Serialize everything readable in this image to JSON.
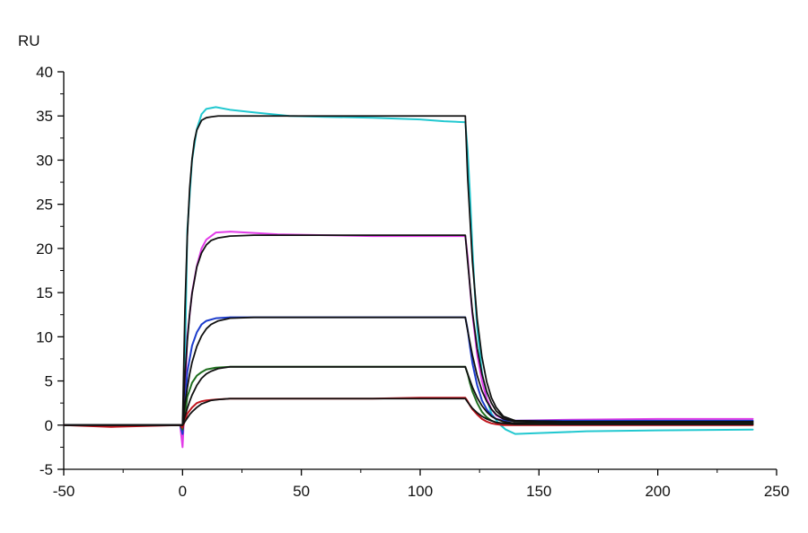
{
  "chart_data": {
    "type": "line",
    "title": "",
    "xlabel": "",
    "ylabel": "RU",
    "xlim": [
      -50,
      250
    ],
    "ylim": [
      -5,
      40
    ],
    "x_ticks": [
      -50,
      0,
      50,
      100,
      150,
      200,
      250
    ],
    "x_tick_labels": [
      "-50",
      "0",
      "50",
      "100",
      "150",
      "200",
      "250"
    ],
    "y_ticks": [
      -5,
      0,
      5,
      10,
      15,
      20,
      25,
      30,
      35,
      40
    ],
    "y_tick_labels": [
      "-5",
      "0",
      "5",
      "10",
      "15",
      "20",
      "25",
      "30",
      "35",
      "40"
    ],
    "grid": false,
    "legend": false,
    "series": [
      {
        "color": "#22c8d0",
        "x": [
          -50,
          -1,
          0,
          1,
          2,
          4,
          6,
          8,
          10,
          14,
          20,
          30,
          45,
          60,
          80,
          100,
          110,
          118,
          119,
          120,
          121,
          122,
          123,
          124,
          126,
          128,
          130,
          133,
          136,
          140,
          150,
          170,
          200,
          240
        ],
        "y": [
          0,
          0,
          -1.5,
          7,
          22,
          30,
          33.5,
          35.2,
          35.8,
          36,
          35.7,
          35.4,
          35,
          34.9,
          34.8,
          34.6,
          34.4,
          34.3,
          34.3,
          31,
          26,
          20,
          15,
          11,
          6,
          3,
          1.3,
          0.2,
          -0.5,
          -1,
          -0.9,
          -0.7,
          -0.6,
          -0.5
        ]
      },
      {
        "color": "#e23be8",
        "x": [
          -50,
          -1,
          0,
          1,
          2,
          4,
          6,
          8,
          10,
          14,
          20,
          40,
          60,
          80,
          100,
          119,
          120,
          121,
          122,
          124,
          126,
          128,
          130,
          132,
          135,
          140,
          160,
          200,
          240
        ],
        "y": [
          0,
          0,
          -2.5,
          3,
          10,
          15,
          18,
          20,
          21,
          21.8,
          21.9,
          21.6,
          21.5,
          21.4,
          21.4,
          21.4,
          19,
          15.5,
          12.5,
          8,
          5,
          3,
          1.8,
          1.1,
          0.7,
          0.5,
          0.6,
          0.7,
          0.7
        ]
      },
      {
        "color": "#1c3ccc",
        "x": [
          -50,
          -1,
          0,
          1,
          2,
          4,
          6,
          8,
          10,
          14,
          20,
          40,
          60,
          80,
          100,
          119,
          120,
          121,
          122,
          124,
          126,
          128,
          130,
          132,
          135,
          140,
          160,
          200,
          240
        ],
        "y": [
          0,
          0,
          -1,
          2,
          6,
          9,
          10.5,
          11.4,
          11.8,
          12.1,
          12.2,
          12.2,
          12.2,
          12.2,
          12.2,
          12.2,
          10.8,
          8.8,
          7,
          4.5,
          2.8,
          1.8,
          1.1,
          0.7,
          0.5,
          0.5,
          0.5,
          0.5,
          0.5
        ]
      },
      {
        "color": "#1e6e1e",
        "x": [
          -50,
          -1,
          0,
          1,
          2,
          4,
          6,
          8,
          10,
          14,
          20,
          40,
          60,
          80,
          100,
          119,
          120,
          121,
          122,
          124,
          126,
          128,
          130,
          132,
          135,
          140,
          160,
          200,
          240
        ],
        "y": [
          0,
          0,
          -0.5,
          1,
          3.2,
          4.8,
          5.6,
          6,
          6.3,
          6.5,
          6.6,
          6.6,
          6.6,
          6.6,
          6.6,
          6.6,
          5.8,
          4.7,
          3.8,
          2.5,
          1.5,
          0.9,
          0.5,
          0.3,
          0.2,
          0.2,
          0.2,
          0.2,
          0.2
        ]
      },
      {
        "color": "#c0141c",
        "x": [
          -50,
          -30,
          -1,
          0,
          1,
          2,
          4,
          6,
          8,
          10,
          14,
          20,
          40,
          60,
          80,
          100,
          119,
          120,
          121,
          122,
          124,
          126,
          128,
          130,
          132,
          135,
          140,
          160,
          200,
          240
        ],
        "y": [
          0,
          -0.2,
          0,
          -0.3,
          0.5,
          1.3,
          2,
          2.5,
          2.7,
          2.8,
          2.9,
          3,
          3,
          3,
          3,
          3.1,
          3.1,
          2.7,
          2.2,
          1.8,
          1.2,
          0.7,
          0.4,
          0.2,
          0.1,
          0,
          0,
          0,
          0,
          0
        ]
      },
      {
        "color": "#111111",
        "x": [
          -50,
          0,
          1,
          2,
          3,
          4,
          5,
          6,
          8,
          10,
          12,
          15,
          20,
          30,
          60,
          119,
          120,
          122,
          124,
          126,
          128,
          130,
          132,
          135,
          140,
          160,
          200,
          240
        ],
        "y": [
          0,
          0,
          13,
          21.4,
          26.8,
          30.1,
          32.2,
          33.4,
          34.5,
          34.8,
          34.9,
          35,
          35,
          35,
          35,
          35,
          28,
          18.5,
          12,
          7.7,
          4.9,
          3.1,
          2,
          1,
          0.5,
          0.4,
          0.4,
          0.4
        ]
      },
      {
        "color": "#111111",
        "x": [
          -50,
          0,
          1,
          2,
          3,
          4,
          6,
          8,
          10,
          12,
          15,
          20,
          30,
          60,
          119,
          120,
          122,
          124,
          126,
          128,
          130,
          132,
          135,
          140,
          160,
          200,
          240
        ],
        "y": [
          0,
          0,
          5.4,
          9.5,
          12.6,
          14.9,
          17.9,
          19.5,
          20.4,
          20.9,
          21.2,
          21.4,
          21.5,
          21.5,
          21.5,
          18.5,
          12.8,
          8.7,
          5.8,
          3.8,
          2.5,
          1.6,
          0.9,
          0.5,
          0.4,
          0.4,
          0.4
        ]
      },
      {
        "color": "#111111",
        "x": [
          -50,
          0,
          1,
          2,
          3,
          4,
          6,
          8,
          10,
          12,
          15,
          20,
          30,
          60,
          119,
          120,
          122,
          124,
          126,
          128,
          130,
          132,
          135,
          140,
          160,
          200,
          240
        ],
        "y": [
          0,
          0,
          2.3,
          4.2,
          5.8,
          7.1,
          8.9,
          10.1,
          10.9,
          11.4,
          11.8,
          12.1,
          12.2,
          12.2,
          12.2,
          10.7,
          7.9,
          5.6,
          3.9,
          2.7,
          1.8,
          1.2,
          0.7,
          0.4,
          0.3,
          0.3,
          0.3
        ]
      },
      {
        "color": "#111111",
        "x": [
          -50,
          0,
          1,
          2,
          3,
          4,
          6,
          8,
          10,
          12,
          15,
          20,
          30,
          60,
          119,
          120,
          122,
          124,
          126,
          128,
          130,
          132,
          135,
          140,
          160,
          200,
          240
        ],
        "y": [
          0,
          0,
          1,
          1.9,
          2.7,
          3.4,
          4.5,
          5.3,
          5.8,
          6.1,
          6.4,
          6.6,
          6.6,
          6.6,
          6.6,
          5.8,
          4.3,
          3.1,
          2.2,
          1.5,
          1,
          0.7,
          0.4,
          0.2,
          0.1,
          0.1,
          0.1
        ]
      },
      {
        "color": "#111111",
        "x": [
          -50,
          0,
          1,
          2,
          3,
          4,
          6,
          8,
          10,
          12,
          15,
          20,
          30,
          60,
          119,
          120,
          122,
          124,
          126,
          128,
          130,
          132,
          135,
          140,
          160,
          200,
          240
        ],
        "y": [
          0,
          0,
          0.4,
          0.8,
          1.2,
          1.5,
          2,
          2.4,
          2.6,
          2.8,
          2.9,
          3,
          3,
          3,
          3,
          2.6,
          1.9,
          1.4,
          1,
          0.7,
          0.5,
          0.3,
          0.2,
          0.1,
          0.1,
          0.1,
          0.1
        ]
      }
    ]
  }
}
